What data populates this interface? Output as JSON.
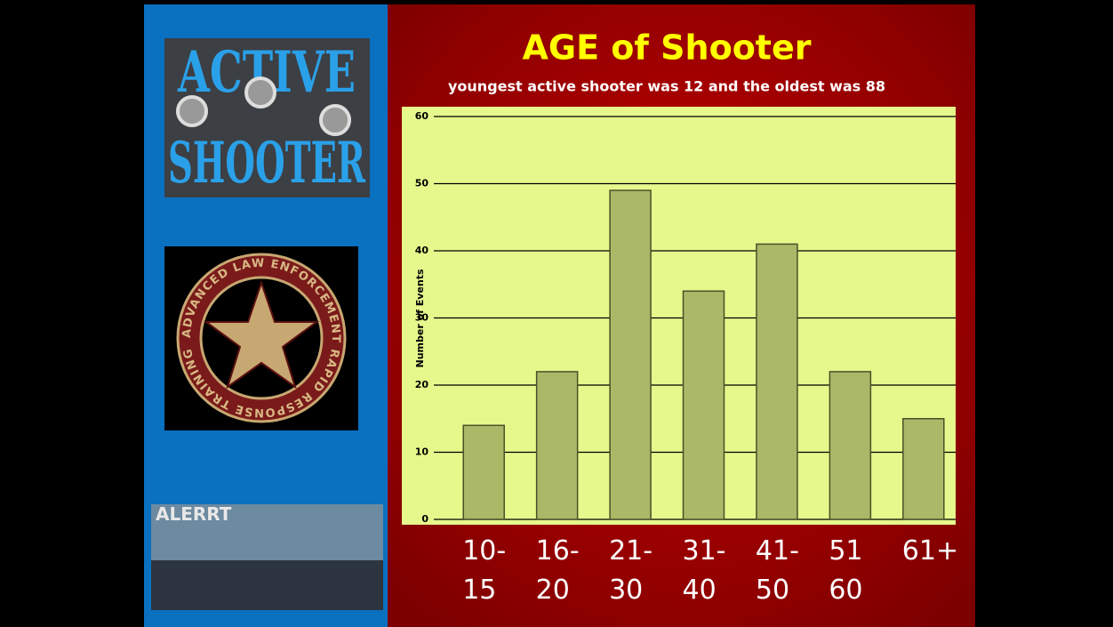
{
  "sidebar": {
    "logo_top": [
      "ACTIVE",
      "SHOOTER"
    ],
    "seal": "ADVANCED LAW ENFORCEMENT RAPID RESPONSE TRAINING",
    "photo": "ALERRT"
  },
  "chart_data": {
    "type": "bar",
    "title": "AGE of Shooter",
    "subtitle": "youngest active shooter was 12 and the oldest was 88",
    "y_label": "Number of Events",
    "categories": [
      "10-\n15",
      "16-\n20",
      "21-\n30",
      "31-\n40",
      "41-\n50",
      "51\n60",
      "61+"
    ],
    "values": [
      14,
      22,
      49,
      34,
      41,
      22,
      15
    ],
    "color": "#abb868",
    "ylim": [
      0,
      60
    ],
    "yticks": [
      0,
      10,
      20,
      30,
      40,
      50,
      60
    ],
    "grid": true
  }
}
